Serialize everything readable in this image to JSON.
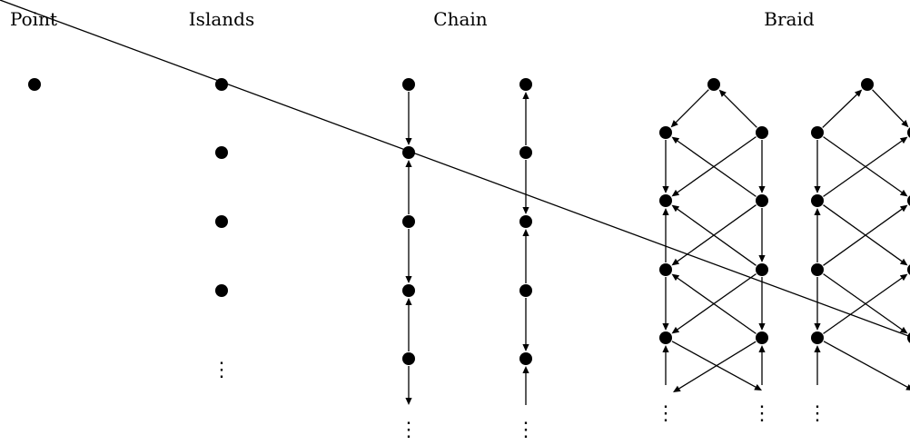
{
  "panels": [
    {
      "key": "point",
      "title": "Point"
    },
    {
      "key": "islands",
      "title": "Islands"
    },
    {
      "key": "chain",
      "title": "Chain"
    },
    {
      "key": "braid",
      "title": "Braid"
    }
  ],
  "continuation_glyph": "⋮",
  "colors": {
    "ink": "#000000",
    "background": "#ffffff"
  },
  "icons": {
    "node": "filled-circle",
    "edge": "arrow"
  }
}
